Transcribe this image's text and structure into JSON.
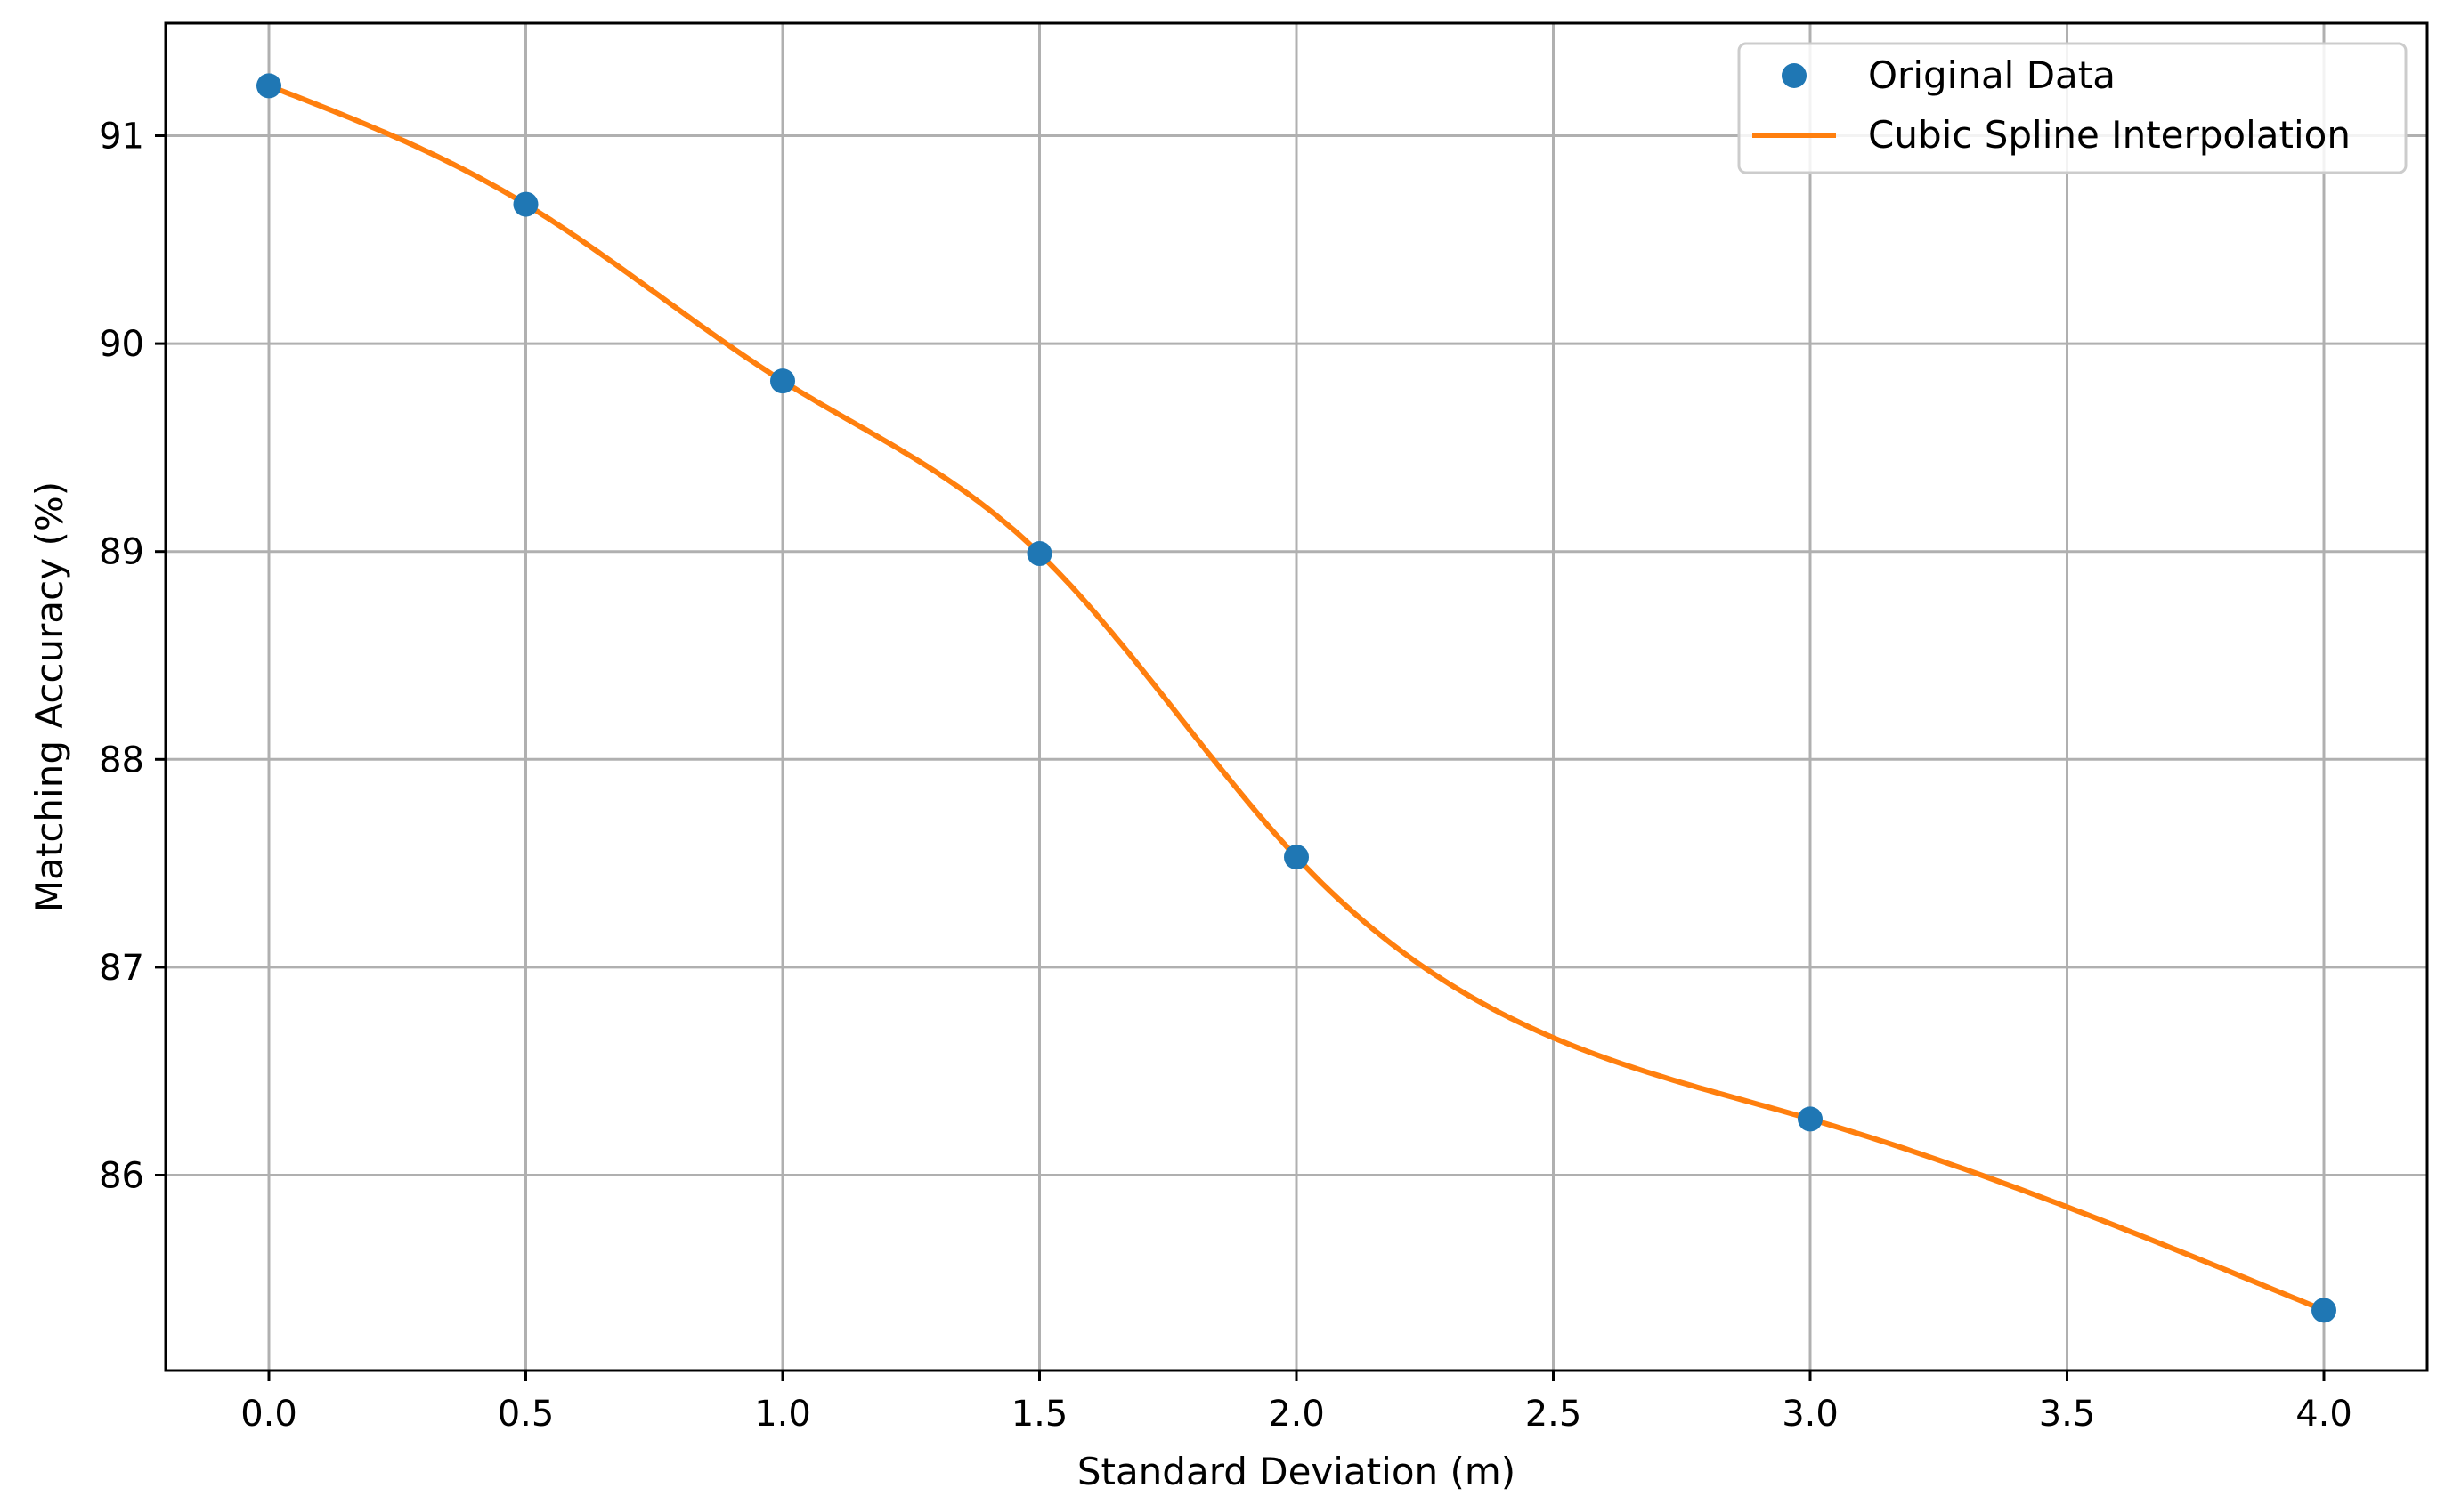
{
  "chart_data": {
    "type": "line",
    "title": "",
    "xlabel": "Standard Deviation (m)",
    "ylabel": "Matching Accuracy (%)",
    "xlim": [
      -0.2,
      4.2
    ],
    "ylim": [
      85.05,
      91.53
    ],
    "xticks": [
      0.0,
      0.5,
      1.0,
      1.5,
      2.0,
      2.5,
      3.0,
      3.5,
      4.0
    ],
    "xtick_labels": [
      "0.0",
      "0.5",
      "1.0",
      "1.5",
      "2.0",
      "2.5",
      "3.0",
      "3.5",
      "4.0"
    ],
    "yticks": [
      86,
      87,
      88,
      89,
      90,
      91
    ],
    "ytick_labels": [
      "86",
      "87",
      "88",
      "89",
      "90",
      "91"
    ],
    "grid": true,
    "legend_position": "top-right",
    "series": [
      {
        "name": "Original Data",
        "kind": "scatter",
        "color": "#1f77b4",
        "x": [
          0.0,
          0.5,
          1.0,
          1.5,
          2.0,
          3.0,
          4.0
        ],
        "y": [
          91.24,
          90.67,
          89.82,
          88.99,
          87.53,
          86.27,
          85.35
        ]
      },
      {
        "name": "Cubic Spline Interpolation",
        "kind": "line",
        "color": "#ff7f0e",
        "x": [
          0.0,
          0.5,
          1.0,
          1.5,
          2.0,
          3.0,
          4.0
        ],
        "y": [
          91.24,
          90.67,
          89.82,
          88.99,
          87.53,
          86.27,
          85.35
        ]
      }
    ]
  }
}
